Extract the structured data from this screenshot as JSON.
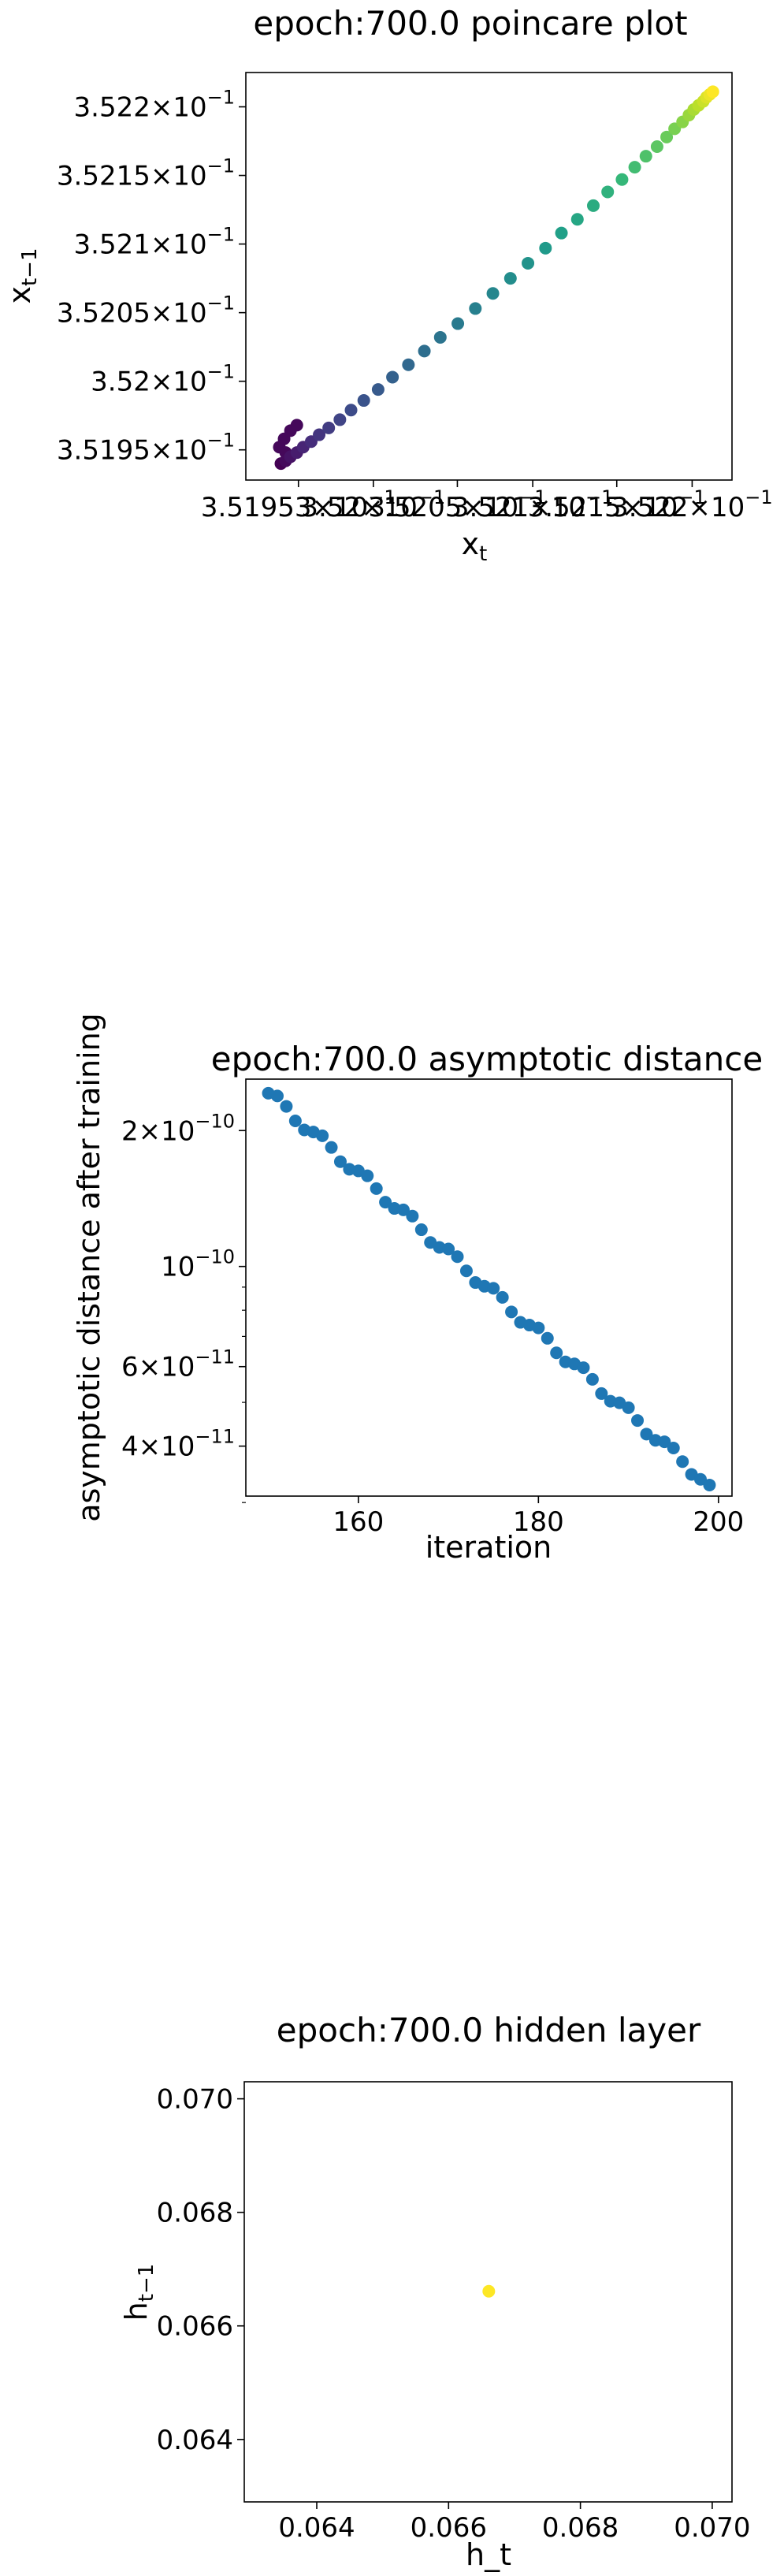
{
  "chart_data": [
    {
      "type": "scatter",
      "title": "epoch:700.0 poincare plot",
      "xlabel": {
        "base": "x",
        "sub": "t"
      },
      "ylabel": {
        "base": "x",
        "sub": "t−1"
      },
      "xlim": [
        0.35192,
        0.352225
      ],
      "ylim": [
        0.351928,
        0.352225
      ],
      "xticks": [
        {
          "value": 0.351953,
          "mantissa": "3.51953",
          "exp": "−1"
        },
        {
          "value": 0.352,
          "mantissa": "3.52",
          "exp": "−1"
        },
        {
          "value": 0.3520527,
          "mantissa": "3.5205",
          "exp": "−1"
        },
        {
          "value": 0.3521,
          "mantissa": "3.521",
          "exp": "−1"
        },
        {
          "value": 0.3521527,
          "mantissa": "3.5215",
          "exp": "−1"
        },
        {
          "value": 0.3522,
          "mantissa": "3.522",
          "exp": "−1"
        }
      ],
      "yticks": [
        {
          "value": 0.35195,
          "mantissa": "3.5195",
          "exp": "−1"
        },
        {
          "value": 0.352,
          "mantissa": "3.52",
          "exp": "−1"
        },
        {
          "value": 0.35205,
          "mantissa": "3.5205",
          "exp": "−1"
        },
        {
          "value": 0.3521,
          "mantissa": "3.521",
          "exp": "−1"
        },
        {
          "value": 0.35215,
          "mantissa": "3.5215",
          "exp": "−1"
        },
        {
          "value": 0.3522,
          "mantissa": "3.522",
          "exp": "−1"
        }
      ],
      "colormap": "viridis",
      "x": [
        0.351942,
        0.351945,
        0.351948,
        0.351952,
        0.351956,
        0.351961,
        0.351966,
        0.351972,
        0.351979,
        0.351986,
        0.351994,
        0.352003,
        0.352012,
        0.352022,
        0.352032,
        0.352042,
        0.352053,
        0.352064,
        0.352075,
        0.352086,
        0.352097,
        0.352108,
        0.352118,
        0.352128,
        0.352138,
        0.352147,
        0.352156,
        0.352164,
        0.352171,
        0.352178,
        0.352184,
        0.352189,
        0.352194,
        0.352198,
        0.352201,
        0.352204,
        0.352207,
        0.352209,
        0.352211,
        0.352213
      ],
      "y": [
        0.35194,
        0.351942,
        0.351945,
        0.351948,
        0.351952,
        0.351956,
        0.351961,
        0.351966,
        0.351972,
        0.351979,
        0.351986,
        0.351994,
        0.352003,
        0.352012,
        0.352022,
        0.352032,
        0.352042,
        0.352053,
        0.352064,
        0.352075,
        0.352086,
        0.352097,
        0.352108,
        0.352118,
        0.352128,
        0.352138,
        0.352147,
        0.352156,
        0.352164,
        0.352171,
        0.352178,
        0.352184,
        0.352189,
        0.352194,
        0.352198,
        0.352201,
        0.352204,
        0.352207,
        0.352209,
        0.352211
      ],
      "extra_points": [
        {
          "x": 0.351941,
          "y": 0.351952
        },
        {
          "x": 0.351944,
          "y": 0.351958
        },
        {
          "x": 0.351948,
          "y": 0.351964
        },
        {
          "x": 0.351952,
          "y": 0.351968
        },
        {
          "x": 0.351945,
          "y": 0.351948
        }
      ]
    },
    {
      "type": "scatter",
      "title": "epoch:700.0 asymptotic distance",
      "xlabel": "iteration",
      "ylabel": "asymptotic distance after training",
      "yscale": "log",
      "xlim": [
        147.5,
        201.5
      ],
      "ylim": [
        3.1e-11,
        2.6e-10
      ],
      "xticks": [
        160,
        180,
        200
      ],
      "yticks": [
        {
          "value": 4e-11,
          "mantissa": "4",
          "exp": "−11"
        },
        {
          "value": 6e-11,
          "mantissa": "6",
          "exp": "−11"
        },
        {
          "value": 1e-10,
          "mantissa": "",
          "exp": "−10"
        },
        {
          "value": 2e-10,
          "mantissa": "2",
          "exp": "−10"
        }
      ],
      "minor_yticks": [
        3e-11,
        5e-11,
        7e-11,
        8e-11,
        9e-11
      ],
      "color": "#1f77b4",
      "x_start": 150,
      "x_end": 199,
      "y_start": 2.42e-10,
      "y_end": 3.28e-11
    },
    {
      "type": "scatter",
      "title": "epoch:700.0 hidden layer",
      "xlabel": "h_t",
      "ylabel": {
        "base": "h",
        "sub": "t−1"
      },
      "xlim": [
        0.0629,
        0.0703
      ],
      "ylim": [
        0.0629,
        0.0703
      ],
      "xticks": [
        0.064,
        0.066,
        0.068,
        0.07
      ],
      "yticks": [
        0.064,
        0.066,
        0.068,
        0.07
      ],
      "xticklabels": [
        "0.064",
        "0.066",
        "0.068",
        "0.070"
      ],
      "yticklabels": [
        "0.064",
        "0.066",
        "0.068",
        "0.070"
      ],
      "color": "#fde725",
      "x": [
        0.06661
      ],
      "y": [
        0.06661
      ]
    }
  ]
}
